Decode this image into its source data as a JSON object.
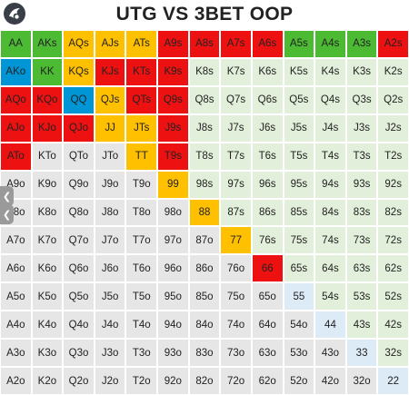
{
  "title": "UTG VS 3BET OOP",
  "logo_icon": "club-logo-icon",
  "colors": {
    "green": "#4cbb33",
    "blue": "#0096d6",
    "yellow": "#ffc000",
    "red": "#ee1111",
    "fold": "#e2efda",
    "offsuit_fold": "#e6e6e6",
    "pair_fold": "#ddebf7"
  },
  "rows": [
    [
      [
        "AA",
        "green"
      ],
      [
        "AKs",
        "green"
      ],
      [
        "AQs",
        "yellow"
      ],
      [
        "AJs",
        "yellow"
      ],
      [
        "ATs",
        "yellow"
      ],
      [
        "A9s",
        "red"
      ],
      [
        "A8s",
        "red"
      ],
      [
        "A7s",
        "red"
      ],
      [
        "A6s",
        "red"
      ],
      [
        "A5s",
        "green"
      ],
      [
        "A4s",
        "green"
      ],
      [
        "A3s",
        "green"
      ],
      [
        "A2s",
        "red"
      ]
    ],
    [
      [
        "AKo",
        "blue"
      ],
      [
        "KK",
        "green"
      ],
      [
        "KQs",
        "yellow"
      ],
      [
        "KJs",
        "red"
      ],
      [
        "KTs",
        "red"
      ],
      [
        "K9s",
        "red"
      ],
      [
        "K8s",
        "fold"
      ],
      [
        "K7s",
        "fold"
      ],
      [
        "K6s",
        "fold"
      ],
      [
        "K5s",
        "fold"
      ],
      [
        "K4s",
        "fold"
      ],
      [
        "K3s",
        "fold"
      ],
      [
        "K2s",
        "fold"
      ]
    ],
    [
      [
        "AQo",
        "red"
      ],
      [
        "KQo",
        "red"
      ],
      [
        "QQ",
        "blue"
      ],
      [
        "QJs",
        "yellow"
      ],
      [
        "QTs",
        "red"
      ],
      [
        "Q9s",
        "red"
      ],
      [
        "Q8s",
        "fold"
      ],
      [
        "Q7s",
        "fold"
      ],
      [
        "Q6s",
        "fold"
      ],
      [
        "Q5s",
        "fold"
      ],
      [
        "Q4s",
        "fold"
      ],
      [
        "Q3s",
        "fold"
      ],
      [
        "Q2s",
        "fold"
      ]
    ],
    [
      [
        "AJo",
        "red"
      ],
      [
        "KJo",
        "red"
      ],
      [
        "QJo",
        "red"
      ],
      [
        "JJ",
        "yellow"
      ],
      [
        "JTs",
        "yellow"
      ],
      [
        "J9s",
        "red"
      ],
      [
        "J8s",
        "fold"
      ],
      [
        "J7s",
        "fold"
      ],
      [
        "J6s",
        "fold"
      ],
      [
        "J5s",
        "fold"
      ],
      [
        "J4s",
        "fold"
      ],
      [
        "J3s",
        "fold"
      ],
      [
        "J2s",
        "fold"
      ]
    ],
    [
      [
        "ATo",
        "red"
      ],
      [
        "KTo",
        "offsuit_fold"
      ],
      [
        "QTo",
        "offsuit_fold"
      ],
      [
        "JTo",
        "offsuit_fold"
      ],
      [
        "TT",
        "yellow"
      ],
      [
        "T9s",
        "red"
      ],
      [
        "T8s",
        "fold"
      ],
      [
        "T7s",
        "fold"
      ],
      [
        "T6s",
        "fold"
      ],
      [
        "T5s",
        "fold"
      ],
      [
        "T4s",
        "fold"
      ],
      [
        "T3s",
        "fold"
      ],
      [
        "T2s",
        "fold"
      ]
    ],
    [
      [
        "A9o",
        "offsuit_fold"
      ],
      [
        "K9o",
        "offsuit_fold"
      ],
      [
        "Q9o",
        "offsuit_fold"
      ],
      [
        "J9o",
        "offsuit_fold"
      ],
      [
        "T9o",
        "offsuit_fold"
      ],
      [
        "99",
        "yellow"
      ],
      [
        "98s",
        "fold"
      ],
      [
        "97s",
        "fold"
      ],
      [
        "96s",
        "fold"
      ],
      [
        "95s",
        "fold"
      ],
      [
        "94s",
        "fold"
      ],
      [
        "93s",
        "fold"
      ],
      [
        "92s",
        "fold"
      ]
    ],
    [
      [
        "A8o",
        "offsuit_fold"
      ],
      [
        "K8o",
        "offsuit_fold"
      ],
      [
        "Q8o",
        "offsuit_fold"
      ],
      [
        "J8o",
        "offsuit_fold"
      ],
      [
        "T8o",
        "offsuit_fold"
      ],
      [
        "98o",
        "offsuit_fold"
      ],
      [
        "88",
        "yellow"
      ],
      [
        "87s",
        "fold"
      ],
      [
        "86s",
        "fold"
      ],
      [
        "85s",
        "fold"
      ],
      [
        "84s",
        "fold"
      ],
      [
        "83s",
        "fold"
      ],
      [
        "82s",
        "fold"
      ]
    ],
    [
      [
        "A7o",
        "offsuit_fold"
      ],
      [
        "K7o",
        "offsuit_fold"
      ],
      [
        "Q7o",
        "offsuit_fold"
      ],
      [
        "J7o",
        "offsuit_fold"
      ],
      [
        "T7o",
        "offsuit_fold"
      ],
      [
        "97o",
        "offsuit_fold"
      ],
      [
        "87o",
        "offsuit_fold"
      ],
      [
        "77",
        "yellow"
      ],
      [
        "76s",
        "fold"
      ],
      [
        "75s",
        "fold"
      ],
      [
        "74s",
        "fold"
      ],
      [
        "73s",
        "fold"
      ],
      [
        "72s",
        "fold"
      ]
    ],
    [
      [
        "A6o",
        "offsuit_fold"
      ],
      [
        "K6o",
        "offsuit_fold"
      ],
      [
        "Q6o",
        "offsuit_fold"
      ],
      [
        "J6o",
        "offsuit_fold"
      ],
      [
        "T6o",
        "offsuit_fold"
      ],
      [
        "96o",
        "offsuit_fold"
      ],
      [
        "86o",
        "offsuit_fold"
      ],
      [
        "76o",
        "offsuit_fold"
      ],
      [
        "66",
        "red"
      ],
      [
        "65s",
        "fold"
      ],
      [
        "64s",
        "fold"
      ],
      [
        "63s",
        "fold"
      ],
      [
        "62s",
        "fold"
      ]
    ],
    [
      [
        "A5o",
        "offsuit_fold"
      ],
      [
        "K5o",
        "offsuit_fold"
      ],
      [
        "Q5o",
        "offsuit_fold"
      ],
      [
        "J5o",
        "offsuit_fold"
      ],
      [
        "T5o",
        "offsuit_fold"
      ],
      [
        "95o",
        "offsuit_fold"
      ],
      [
        "85o",
        "offsuit_fold"
      ],
      [
        "75o",
        "offsuit_fold"
      ],
      [
        "65o",
        "offsuit_fold"
      ],
      [
        "55",
        "pair_fold"
      ],
      [
        "54s",
        "fold"
      ],
      [
        "53s",
        "fold"
      ],
      [
        "52s",
        "fold"
      ]
    ],
    [
      [
        "A4o",
        "offsuit_fold"
      ],
      [
        "K4o",
        "offsuit_fold"
      ],
      [
        "Q4o",
        "offsuit_fold"
      ],
      [
        "J4o",
        "offsuit_fold"
      ],
      [
        "T4o",
        "offsuit_fold"
      ],
      [
        "94o",
        "offsuit_fold"
      ],
      [
        "84o",
        "offsuit_fold"
      ],
      [
        "74o",
        "offsuit_fold"
      ],
      [
        "64o",
        "offsuit_fold"
      ],
      [
        "54o",
        "offsuit_fold"
      ],
      [
        "44",
        "pair_fold"
      ],
      [
        "43s",
        "fold"
      ],
      [
        "42s",
        "fold"
      ]
    ],
    [
      [
        "A3o",
        "offsuit_fold"
      ],
      [
        "K3o",
        "offsuit_fold"
      ],
      [
        "Q3o",
        "offsuit_fold"
      ],
      [
        "J3o",
        "offsuit_fold"
      ],
      [
        "T3o",
        "offsuit_fold"
      ],
      [
        "93o",
        "offsuit_fold"
      ],
      [
        "83o",
        "offsuit_fold"
      ],
      [
        "73o",
        "offsuit_fold"
      ],
      [
        "63o",
        "offsuit_fold"
      ],
      [
        "53o",
        "offsuit_fold"
      ],
      [
        "43o",
        "offsuit_fold"
      ],
      [
        "33",
        "pair_fold"
      ],
      [
        "32s",
        "fold"
      ]
    ],
    [
      [
        "A2o",
        "offsuit_fold"
      ],
      [
        "K2o",
        "offsuit_fold"
      ],
      [
        "Q2o",
        "offsuit_fold"
      ],
      [
        "J2o",
        "offsuit_fold"
      ],
      [
        "T2o",
        "offsuit_fold"
      ],
      [
        "92o",
        "offsuit_fold"
      ],
      [
        "82o",
        "offsuit_fold"
      ],
      [
        "72o",
        "offsuit_fold"
      ],
      [
        "62o",
        "offsuit_fold"
      ],
      [
        "52o",
        "offsuit_fold"
      ],
      [
        "42o",
        "offsuit_fold"
      ],
      [
        "32o",
        "offsuit_fold"
      ],
      [
        "22",
        "pair_fold"
      ]
    ]
  ],
  "side_controls": [
    {
      "icon": "chevron-left-icon",
      "glyph": "❮"
    },
    {
      "icon": "chevron-left-icon",
      "glyph": "❮"
    }
  ]
}
